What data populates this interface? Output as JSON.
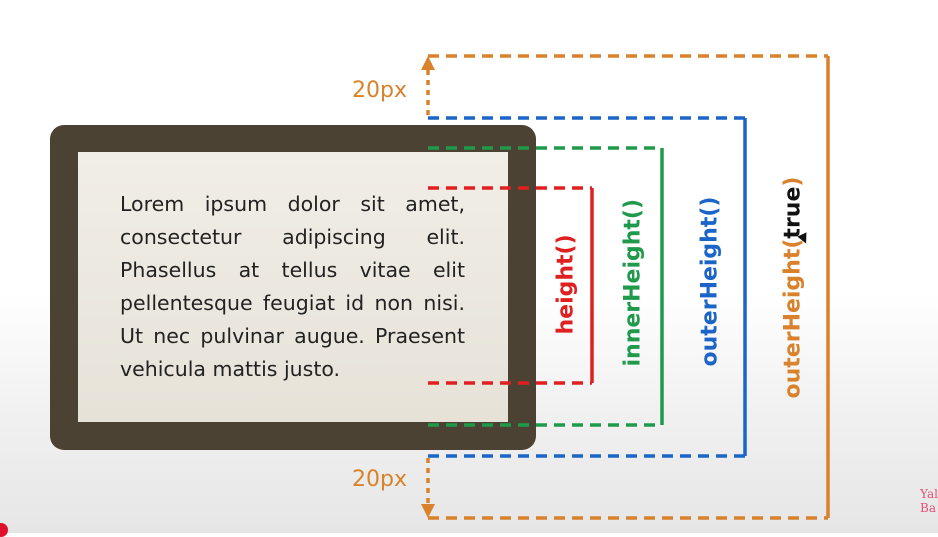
{
  "paragraph": "Lorem ipsum dolor sit amet, consectetur adipiscing elit. Phasellus at tellus vitae elit pellentesque feugiat id non nisi. Ut nec pulvinar augue. Praesent vehicula mattis justo.",
  "brackets": {
    "height": {
      "label": "height()",
      "color": "#e02020"
    },
    "innerHeight": {
      "label": "innerHeight()",
      "color": "#1f9a4b"
    },
    "outerHeight": {
      "label": "outerHeight()",
      "color": "#1b64c8"
    },
    "outerHeightTrue": {
      "label_prefix": "outerHeight(",
      "label_arg": "true",
      "label_suffix": ")",
      "color": "#d9822b"
    }
  },
  "margin_top_label": "20px",
  "margin_bottom_label": "20px",
  "watermark": "Yal Ba"
}
